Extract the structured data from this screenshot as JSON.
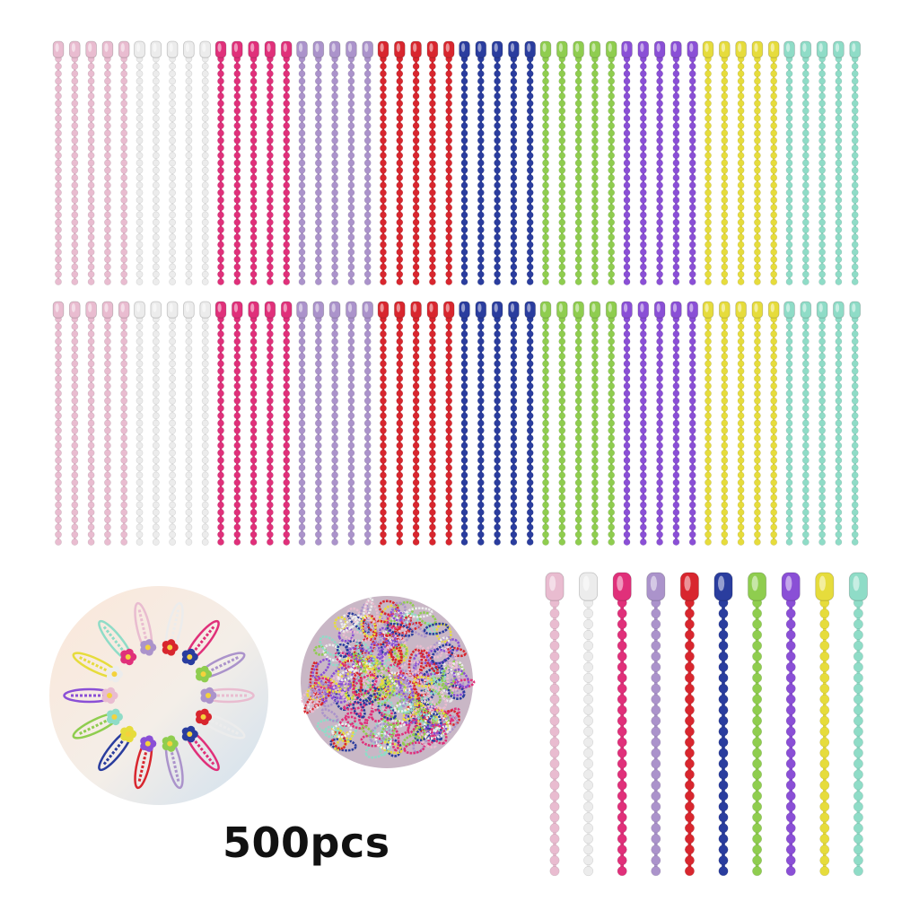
{
  "product": {
    "quantity_label": "500pcs",
    "chain_colors": [
      {
        "name": "light-pink",
        "hex": "#e9bcd0"
      },
      {
        "name": "white",
        "hex": "#ececec"
      },
      {
        "name": "hot-pink",
        "hex": "#e0307a"
      },
      {
        "name": "lavender",
        "hex": "#ab93cb"
      },
      {
        "name": "red",
        "hex": "#d8262e"
      },
      {
        "name": "blue",
        "hex": "#2a3d9e"
      },
      {
        "name": "lime-green",
        "hex": "#8fcd4f"
      },
      {
        "name": "purple",
        "hex": "#8a4fd6"
      },
      {
        "name": "yellow",
        "hex": "#e6dc3c"
      },
      {
        "name": "mint",
        "hex": "#8fdcc7"
      }
    ]
  }
}
